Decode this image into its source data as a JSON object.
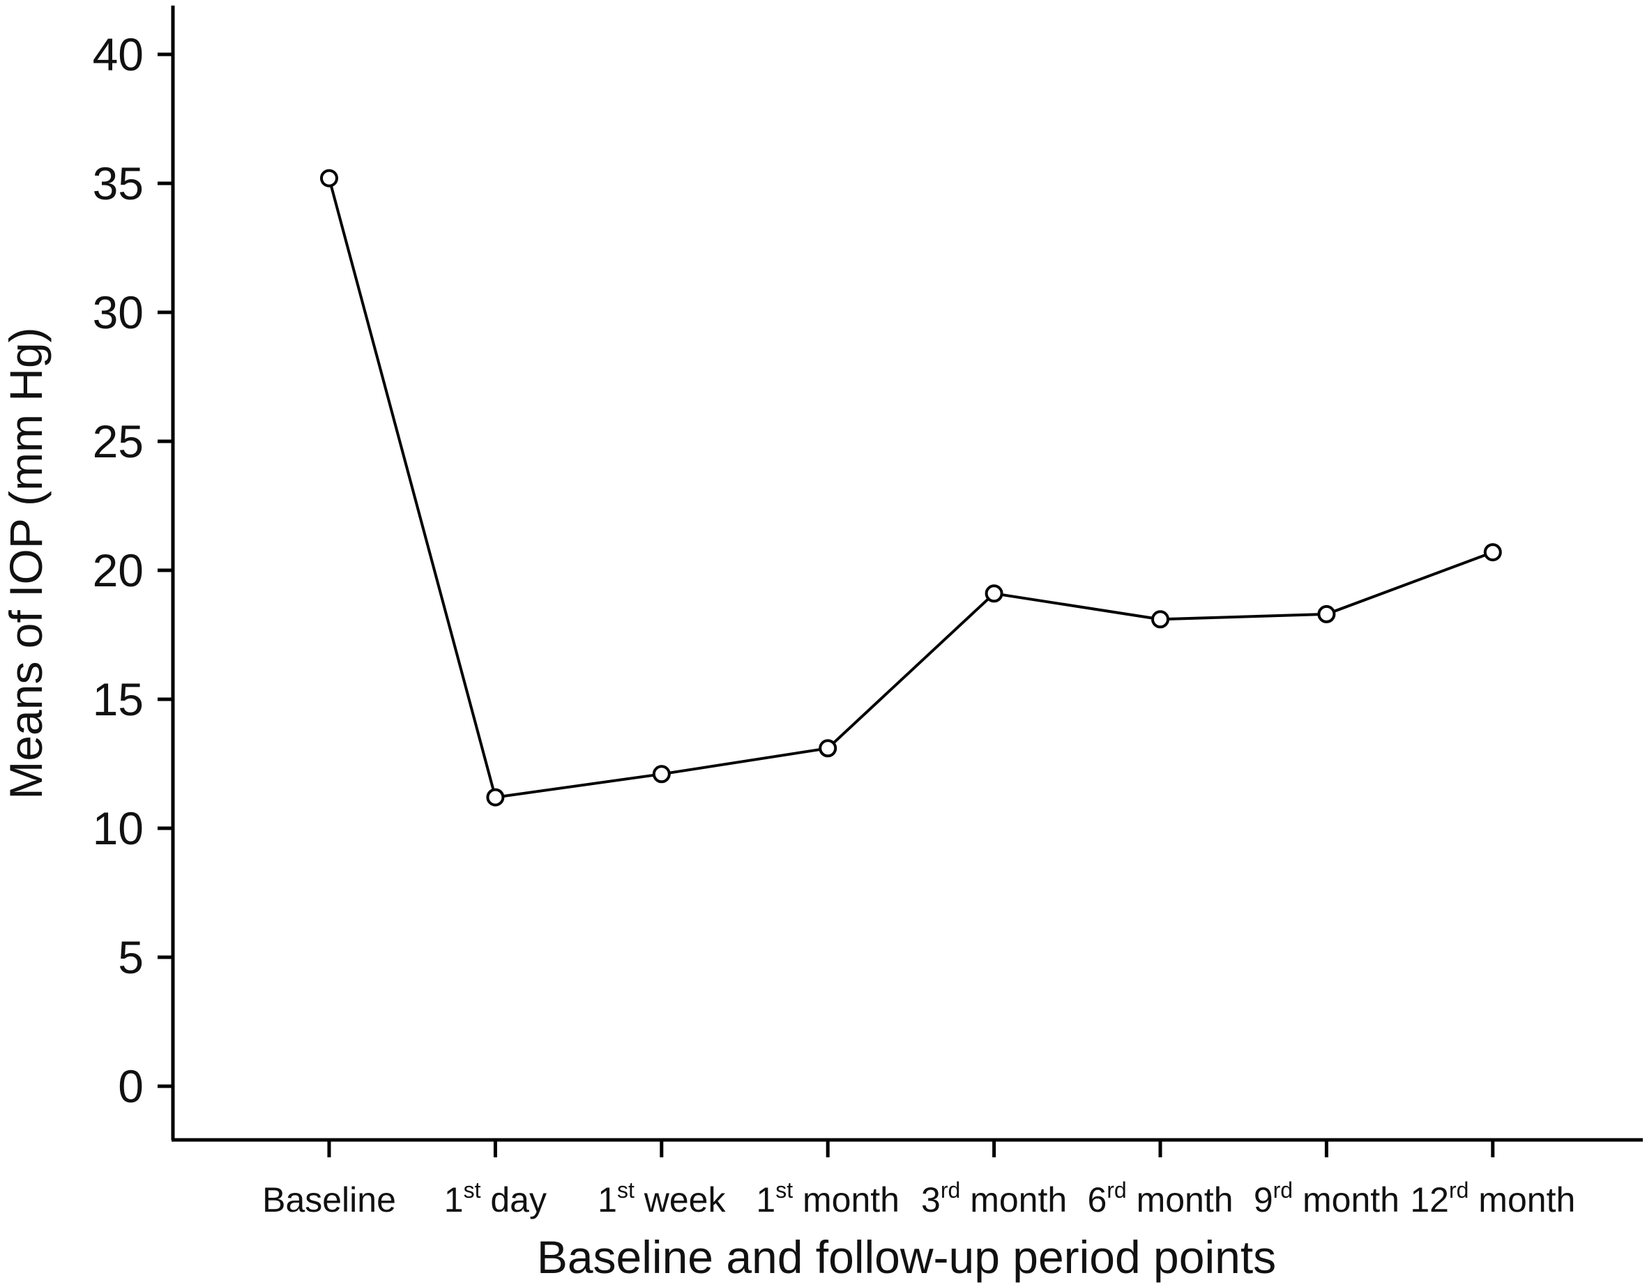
{
  "chart_data": {
    "type": "line",
    "title": "",
    "xlabel": "Baseline and follow-up period points",
    "ylabel": "Means of IOP (mm Hg)",
    "ylim": [
      0,
      40
    ],
    "yticks": [
      0,
      5,
      10,
      15,
      20,
      25,
      30,
      35,
      40
    ],
    "categories": [
      {
        "base": "Baseline",
        "sup": "",
        "rest": ""
      },
      {
        "base": "1",
        "sup": "st",
        "rest": " day"
      },
      {
        "base": "1",
        "sup": "st",
        "rest": " week"
      },
      {
        "base": "1",
        "sup": "st",
        "rest": " month"
      },
      {
        "base": "3",
        "sup": "rd",
        "rest": " month"
      },
      {
        "base": "6",
        "sup": "rd",
        "rest": " month"
      },
      {
        "base": "9",
        "sup": "rd",
        "rest": " month"
      },
      {
        "base": "12",
        "sup": "rd",
        "rest": " month"
      }
    ],
    "series": [
      {
        "values": [
          35.2,
          11.2,
          12.1,
          13.1,
          19.1,
          18.1,
          18.3,
          20.7
        ]
      }
    ],
    "grid": false,
    "legend": "none",
    "colors": {
      "line": "#000000",
      "marker_fill": "#ffffff",
      "axis": "#000000"
    }
  }
}
